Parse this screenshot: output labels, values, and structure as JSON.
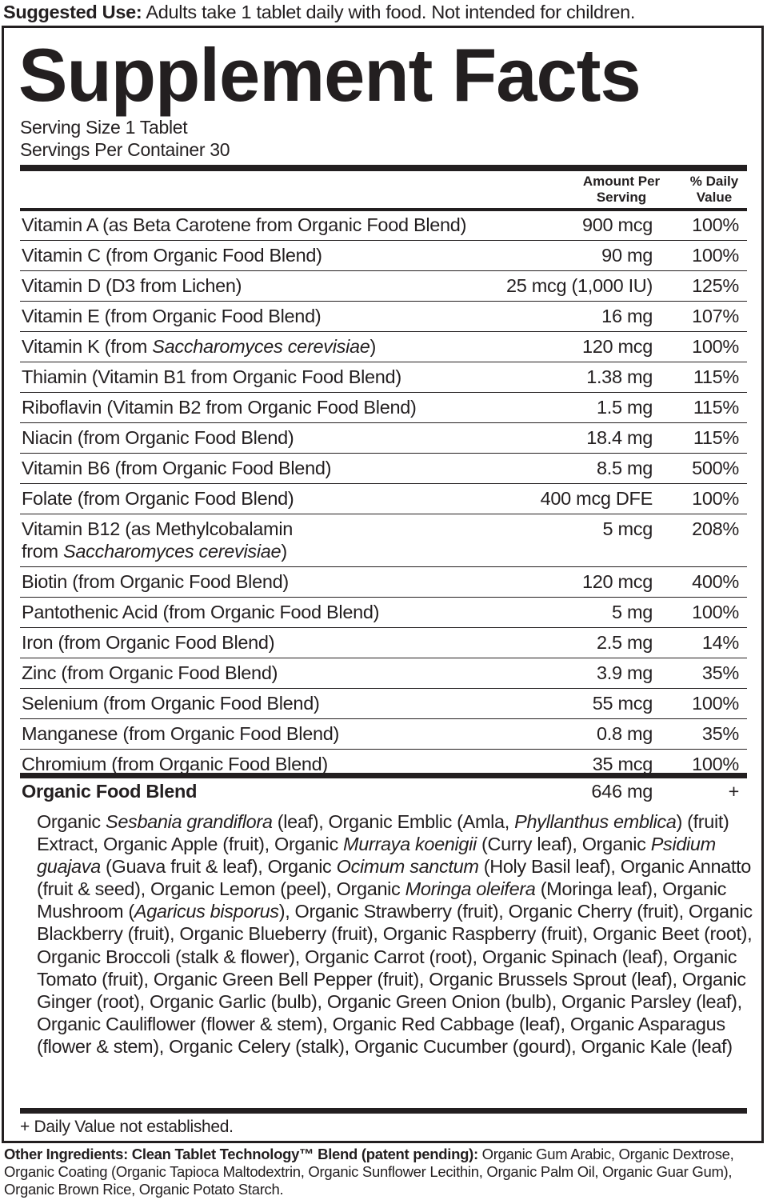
{
  "suggested_use": {
    "label": "Suggested Use:",
    "text": " Adults take 1 tablet daily with food. Not intended for children."
  },
  "title": "Supplement Facts",
  "serving_size": "Serving Size 1 Tablet",
  "servings_per_container": "Servings Per Container 30",
  "headers": {
    "amount_line1": "Amount Per",
    "amount_line2": "Serving",
    "dv_line1": "% Daily",
    "dv_line2": "Value"
  },
  "rows": [
    {
      "name": [
        {
          "t": "Vitamin A (as Beta Carotene from Organic Food Blend)"
        }
      ],
      "amount": "900 mcg",
      "dv": "100%"
    },
    {
      "name": [
        {
          "t": "Vitamin C (from Organic Food Blend)"
        }
      ],
      "amount": "90 mg",
      "dv": "100%"
    },
    {
      "name": [
        {
          "t": "Vitamin D (D3 from Lichen)"
        }
      ],
      "amount": "25 mcg (1,000 IU)",
      "dv": "125%"
    },
    {
      "name": [
        {
          "t": "Vitamin E (from Organic Food Blend)"
        }
      ],
      "amount": "16 mg",
      "dv": "107%"
    },
    {
      "name": [
        {
          "t": "Vitamin K (from "
        },
        {
          "t": "Saccharomyces cerevisiae",
          "i": true
        },
        {
          "t": ")"
        }
      ],
      "amount": "120 mcg",
      "dv": "100%"
    },
    {
      "name": [
        {
          "t": "Thiamin (Vitamin B1 from Organic Food Blend)"
        }
      ],
      "amount": "1.38 mg",
      "dv": "115%"
    },
    {
      "name": [
        {
          "t": "Riboflavin (Vitamin B2 from Organic Food Blend)"
        }
      ],
      "amount": "1.5 mg",
      "dv": "115%"
    },
    {
      "name": [
        {
          "t": "Niacin (from Organic Food Blend)"
        }
      ],
      "amount": "18.4 mg",
      "dv": "115%"
    },
    {
      "name": [
        {
          "t": "Vitamin B6 (from Organic Food Blend)"
        }
      ],
      "amount": "8.5 mg",
      "dv": "500%"
    },
    {
      "name": [
        {
          "t": "Folate (from Organic Food Blend)"
        }
      ],
      "amount": "400 mcg DFE",
      "dv": "100%"
    },
    {
      "name": [
        {
          "t": "Vitamin B12 (as Methylcobalamin"
        },
        {
          "br": true
        },
        {
          "t": "from "
        },
        {
          "t": "Saccharomyces cerevisiae",
          "i": true
        },
        {
          "t": ")"
        }
      ],
      "amount": "5 mcg",
      "dv": "208%"
    },
    {
      "name": [
        {
          "t": "Biotin (from Organic Food Blend)"
        }
      ],
      "amount": "120 mcg",
      "dv": "400%"
    },
    {
      "name": [
        {
          "t": "Pantothenic Acid (from Organic Food Blend)"
        }
      ],
      "amount": "5 mg",
      "dv": "100%"
    },
    {
      "name": [
        {
          "t": "Iron (from Organic Food Blend)"
        }
      ],
      "amount": "2.5 mg",
      "dv": "14%"
    },
    {
      "name": [
        {
          "t": "Zinc (from Organic Food Blend)"
        }
      ],
      "amount": "3.9 mg",
      "dv": "35%"
    },
    {
      "name": [
        {
          "t": "Selenium (from Organic Food Blend)"
        }
      ],
      "amount": "55 mcg",
      "dv": "100%"
    },
    {
      "name": [
        {
          "t": "Manganese (from Organic Food Blend)"
        }
      ],
      "amount": "0.8 mg",
      "dv": "35%"
    },
    {
      "name": [
        {
          "t": "Chromium (from Organic Food Blend)"
        }
      ],
      "amount": "35 mcg",
      "dv": "100%"
    }
  ],
  "blend": {
    "name": "Organic Food Blend",
    "amount": "646 mg",
    "dv": "+",
    "ingredients": [
      {
        "t": "Organic "
      },
      {
        "t": "Sesbania grandiflora",
        "i": true
      },
      {
        "t": " (leaf), Organic Emblic (Amla, "
      },
      {
        "t": "Phyllanthus emblica",
        "i": true
      },
      {
        "t": ") (fruit) Extract, Organic Apple (fruit), Organic "
      },
      {
        "t": "Murraya koenigii",
        "i": true
      },
      {
        "t": " (Curry leaf), Organic "
      },
      {
        "t": "Psidium guajava",
        "i": true
      },
      {
        "t": " (Guava fruit & leaf), Organic "
      },
      {
        "t": "Ocimum sanctum",
        "i": true
      },
      {
        "t": " (Holy Basil leaf), Organic Annatto (fruit & seed), Organic Lemon (peel), Organic "
      },
      {
        "t": "Moringa oleifera",
        "i": true
      },
      {
        "t": " (Moringa leaf), Organic Mushroom ("
      },
      {
        "t": "Agaricus bisporus",
        "i": true
      },
      {
        "t": "), Organic Strawberry (fruit), Organic Cherry (fruit), Organic Blackberry (fruit), Organic Blueberry (fruit), Organic Raspberry (fruit), Organic Beet (root), Organic Broccoli (stalk & flower), Organic Carrot (root), Organic Spinach (leaf), Organic Tomato (fruit), Organic Green Bell Pepper (fruit), Organic Brussels Sprout (leaf), Organic Ginger (root), Organic Garlic (bulb), Organic Green Onion (bulb), Organic Parsley (leaf), Organic Cauliflower (flower & stem), Organic Red Cabbage (leaf), Organic Asparagus (flower & stem), Organic Celery (stalk), Organic Cucumber (gourd), Organic Kale (leaf)"
      }
    ]
  },
  "footnote": "+ Daily Value not established.",
  "other_ingredients": {
    "label": "Other Ingredients: Clean Tablet Technology™ Blend (patent pending):",
    "text": " Organic Gum Arabic, Organic Dextrose, Organic Coating (Organic Tapioca Maltodextrin, Organic Sunflower Lecithin, Organic Palm Oil, Organic Guar Gum), Organic Brown Rice, Organic Potato Starch."
  }
}
